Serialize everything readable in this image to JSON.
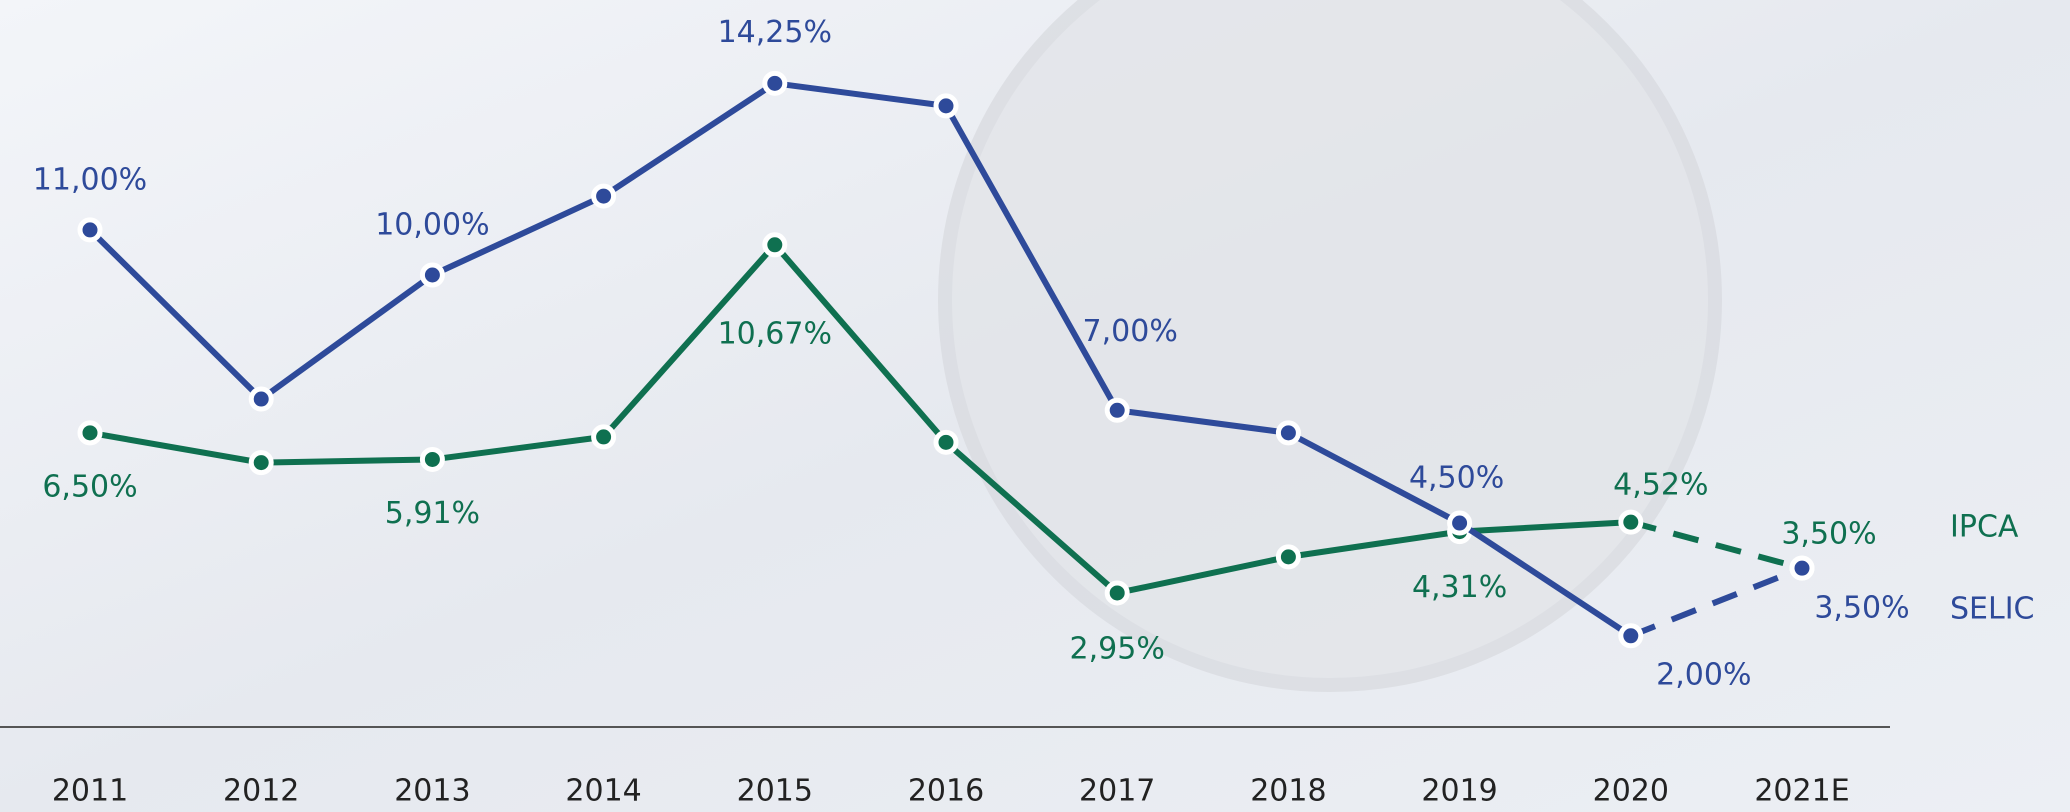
{
  "chart_data": {
    "type": "line",
    "categories": [
      "2011",
      "2012",
      "2013",
      "2014",
      "2015",
      "2016",
      "2017",
      "2018",
      "2019",
      "2020",
      "2021E"
    ],
    "series": [
      {
        "name": "IPCA",
        "color": "#0f7050",
        "values": [
          6.5,
          5.84,
          5.91,
          6.41,
          10.67,
          6.29,
          2.95,
          3.75,
          4.31,
          4.52,
          3.5
        ],
        "value_labels": [
          "6,50%",
          null,
          "5,91%",
          null,
          "10,67%",
          null,
          "2,95%",
          null,
          "4,31%",
          "4,52%",
          "3,50%"
        ]
      },
      {
        "name": "SELIC",
        "color": "#2e4a9a",
        "values": [
          11.0,
          7.25,
          10.0,
          11.75,
          14.25,
          13.75,
          7.0,
          6.5,
          4.5,
          2.0,
          3.5
        ],
        "value_labels": [
          "11,00%",
          null,
          "10,00%",
          null,
          "14,25%",
          null,
          "7,00%",
          null,
          "4,50%",
          "2,00%",
          "3,50%"
        ]
      }
    ]
  }
}
